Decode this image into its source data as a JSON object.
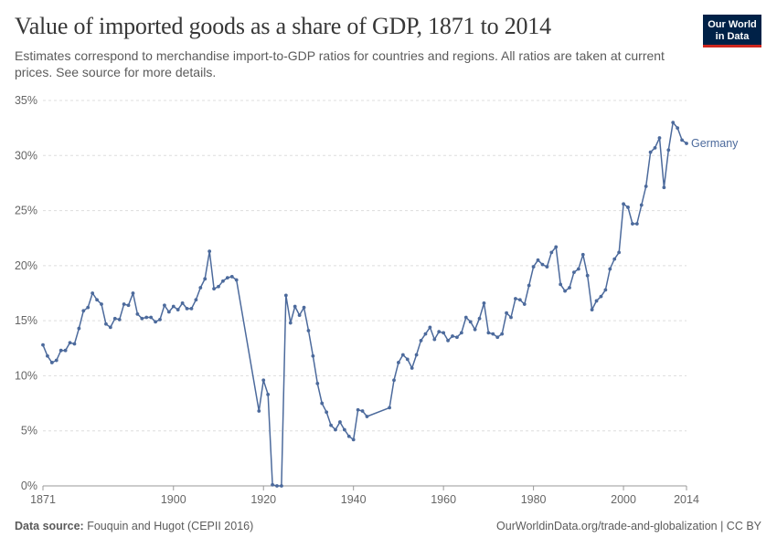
{
  "header": {
    "title": "Value of imported goods as a share of GDP, 1871 to 2014",
    "subtitle": "Estimates correspond to merchandise import-to-GDP ratios for countries and regions. All ratios are taken at current prices. See source for more details.",
    "logo_line1": "Our World",
    "logo_line2": "in Data"
  },
  "footer": {
    "source_label": "Data source:",
    "source_text": "Fouquin and Hugot (CEPII 2016)",
    "link_text": "OurWorldinData.org/trade-and-globalization | CC BY"
  },
  "colors": {
    "line": "#4c6a9c",
    "grid": "#dddddd",
    "logo_bg": "#002147",
    "logo_accent": "#ce261e"
  },
  "chart_data": {
    "type": "line",
    "title": "Value of imported goods as a share of GDP, 1871 to 2014",
    "xlim": [
      1871,
      2014
    ],
    "ylim": [
      0,
      35
    ],
    "x_ticks": [
      1871,
      1900,
      1920,
      1940,
      1960,
      1980,
      2000,
      2014
    ],
    "y_ticks": [
      0,
      5,
      10,
      15,
      20,
      25,
      30,
      35
    ],
    "y_tick_labels": [
      "0%",
      "5%",
      "10%",
      "15%",
      "20%",
      "25%",
      "30%",
      "35%"
    ],
    "grid": "horizontal dashed",
    "legend": "inline label at end of line",
    "series": [
      {
        "name": "Germany",
        "points": [
          [
            1871,
            12.8
          ],
          [
            1872,
            11.8
          ],
          [
            1873,
            11.2
          ],
          [
            1874,
            11.4
          ],
          [
            1875,
            12.3
          ],
          [
            1876,
            12.3
          ],
          [
            1877,
            13.0
          ],
          [
            1878,
            12.9
          ],
          [
            1879,
            14.3
          ],
          [
            1880,
            15.9
          ],
          [
            1881,
            16.2
          ],
          [
            1882,
            17.5
          ],
          [
            1883,
            16.9
          ],
          [
            1884,
            16.5
          ],
          [
            1885,
            14.7
          ],
          [
            1886,
            14.4
          ],
          [
            1887,
            15.2
          ],
          [
            1888,
            15.1
          ],
          [
            1889,
            16.5
          ],
          [
            1890,
            16.4
          ],
          [
            1891,
            17.5
          ],
          [
            1892,
            15.6
          ],
          [
            1893,
            15.2
          ],
          [
            1894,
            15.3
          ],
          [
            1895,
            15.3
          ],
          [
            1896,
            14.9
          ],
          [
            1897,
            15.1
          ],
          [
            1898,
            16.4
          ],
          [
            1899,
            15.8
          ],
          [
            1900,
            16.3
          ],
          [
            1901,
            16.0
          ],
          [
            1902,
            16.6
          ],
          [
            1903,
            16.1
          ],
          [
            1904,
            16.1
          ],
          [
            1905,
            16.9
          ],
          [
            1906,
            18.0
          ],
          [
            1907,
            18.8
          ],
          [
            1908,
            21.3
          ],
          [
            1909,
            17.9
          ],
          [
            1910,
            18.1
          ],
          [
            1911,
            18.6
          ],
          [
            1912,
            18.9
          ],
          [
            1913,
            19.0
          ],
          [
            1914,
            18.7
          ],
          [
            1919,
            6.8
          ],
          [
            1920,
            9.6
          ],
          [
            1921,
            8.3
          ],
          [
            1922,
            0.1
          ],
          [
            1923,
            0.0
          ],
          [
            1924,
            0.0
          ],
          [
            1925,
            17.3
          ],
          [
            1926,
            14.8
          ],
          [
            1927,
            16.3
          ],
          [
            1928,
            15.5
          ],
          [
            1929,
            16.2
          ],
          [
            1930,
            14.1
          ],
          [
            1931,
            11.8
          ],
          [
            1932,
            9.3
          ],
          [
            1933,
            7.5
          ],
          [
            1934,
            6.7
          ],
          [
            1935,
            5.5
          ],
          [
            1936,
            5.1
          ],
          [
            1937,
            5.8
          ],
          [
            1938,
            5.1
          ],
          [
            1939,
            4.5
          ],
          [
            1940,
            4.2
          ],
          [
            1941,
            6.9
          ],
          [
            1942,
            6.8
          ],
          [
            1943,
            6.3
          ],
          [
            1948,
            7.1
          ],
          [
            1949,
            9.6
          ],
          [
            1950,
            11.2
          ],
          [
            1951,
            11.9
          ],
          [
            1952,
            11.5
          ],
          [
            1953,
            10.7
          ],
          [
            1954,
            11.9
          ],
          [
            1955,
            13.2
          ],
          [
            1956,
            13.8
          ],
          [
            1957,
            14.4
          ],
          [
            1958,
            13.3
          ],
          [
            1959,
            14.0
          ],
          [
            1960,
            13.9
          ],
          [
            1961,
            13.2
          ],
          [
            1962,
            13.6
          ],
          [
            1963,
            13.5
          ],
          [
            1964,
            13.9
          ],
          [
            1965,
            15.3
          ],
          [
            1966,
            14.9
          ],
          [
            1967,
            14.2
          ],
          [
            1968,
            15.2
          ],
          [
            1969,
            16.6
          ],
          [
            1970,
            13.9
          ],
          [
            1971,
            13.8
          ],
          [
            1972,
            13.5
          ],
          [
            1973,
            13.8
          ],
          [
            1974,
            15.7
          ],
          [
            1975,
            15.3
          ],
          [
            1976,
            17.0
          ],
          [
            1977,
            16.9
          ],
          [
            1978,
            16.5
          ],
          [
            1979,
            18.2
          ],
          [
            1980,
            19.9
          ],
          [
            1981,
            20.5
          ],
          [
            1982,
            20.1
          ],
          [
            1983,
            19.9
          ],
          [
            1984,
            21.2
          ],
          [
            1985,
            21.7
          ],
          [
            1986,
            18.3
          ],
          [
            1987,
            17.7
          ],
          [
            1988,
            18.0
          ],
          [
            1989,
            19.4
          ],
          [
            1990,
            19.7
          ],
          [
            1991,
            21.0
          ],
          [
            1992,
            19.1
          ],
          [
            1993,
            16.0
          ],
          [
            1994,
            16.8
          ],
          [
            1995,
            17.2
          ],
          [
            1996,
            17.8
          ],
          [
            1997,
            19.7
          ],
          [
            1998,
            20.6
          ],
          [
            1999,
            21.2
          ],
          [
            2000,
            25.6
          ],
          [
            2001,
            25.3
          ],
          [
            2002,
            23.8
          ],
          [
            2003,
            23.8
          ],
          [
            2004,
            25.5
          ],
          [
            2005,
            27.2
          ],
          [
            2006,
            30.3
          ],
          [
            2007,
            30.7
          ],
          [
            2008,
            31.6
          ],
          [
            2009,
            27.1
          ],
          [
            2010,
            30.5
          ],
          [
            2011,
            33.0
          ],
          [
            2012,
            32.5
          ],
          [
            2013,
            31.4
          ],
          [
            2014,
            31.1
          ]
        ]
      }
    ]
  }
}
